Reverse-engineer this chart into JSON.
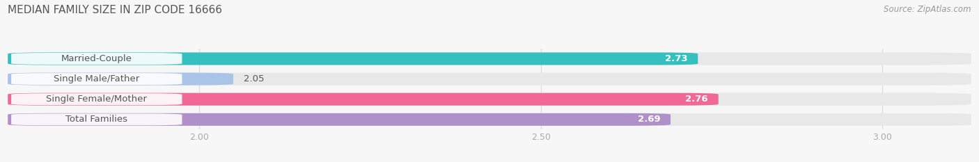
{
  "title": "MEDIAN FAMILY SIZE IN ZIP CODE 16666",
  "source": "Source: ZipAtlas.com",
  "categories": [
    "Married-Couple",
    "Single Male/Father",
    "Single Female/Mother",
    "Total Families"
  ],
  "values": [
    2.73,
    2.05,
    2.76,
    2.69
  ],
  "bar_colors": [
    "#35bfbf",
    "#aac4e8",
    "#f06898",
    "#b090c8"
  ],
  "bar_bg_color": "#e8e8e8",
  "xlim": [
    1.72,
    3.13
  ],
  "xticks": [
    2.0,
    2.5,
    3.0
  ],
  "bar_height": 0.62,
  "bar_gap": 0.18,
  "label_fontsize": 9.5,
  "value_fontsize": 9.5,
  "title_fontsize": 11,
  "source_fontsize": 8.5,
  "background_color": "#f7f7f7",
  "text_color": "#555555",
  "grid_color": "#d8d8d8",
  "tick_color": "#aaaaaa",
  "white_label_bg": "#ffffff"
}
